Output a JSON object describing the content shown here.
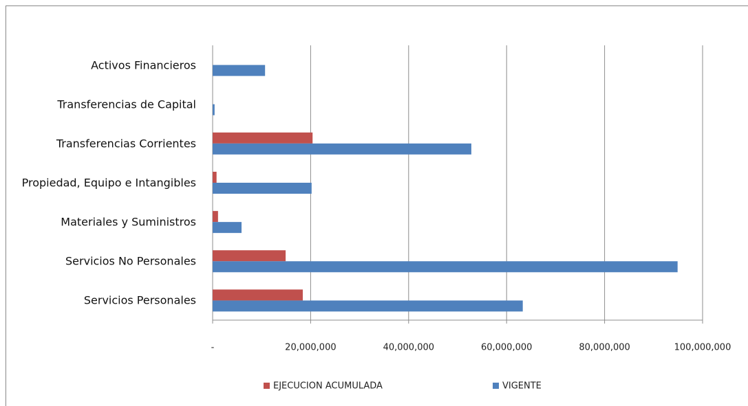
{
  "chart_data": {
    "type": "hbar",
    "categories": [
      "Activos Financieros",
      "Transferencias de Capital",
      "Transferencias Corrientes",
      "Propiedad, Equipo e Intangibles",
      "Materiales y Suministros",
      "Servicios No Personales",
      "Servicios  Personales"
    ],
    "series": [
      {
        "name": "EJECUCION ACUMULADA",
        "color": "#c0504d",
        "values": [
          0,
          0,
          20400000,
          800000,
          1100000,
          14900000,
          18400000
        ]
      },
      {
        "name": "VIGENTE",
        "color": "#4f81bd",
        "values": [
          10700000,
          400000,
          52800000,
          20200000,
          5900000,
          94900000,
          63300000
        ]
      }
    ],
    "xlim": [
      0,
      100000000
    ],
    "xticks": [
      {
        "value": 0,
        "label": "-"
      },
      {
        "value": 20000000,
        "label": "20,000,000"
      },
      {
        "value": 40000000,
        "label": "40,000,000"
      },
      {
        "value": 60000000,
        "label": "60,000,000"
      },
      {
        "value": 80000000,
        "label": "80,000,000"
      },
      {
        "value": 100000000,
        "label": "100,000,000"
      }
    ],
    "grid": true,
    "legend": "bottom"
  }
}
